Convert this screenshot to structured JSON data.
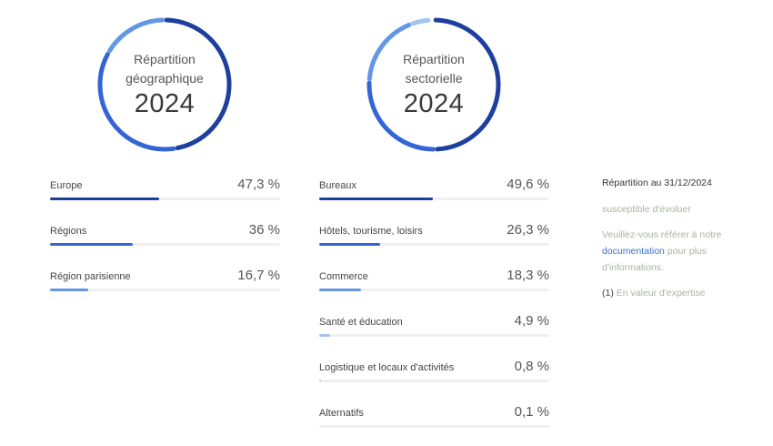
{
  "geo": {
    "title": "Répartition géographique",
    "year": "2024",
    "items": [
      {
        "label": "Europe",
        "value": "47,3 %",
        "pct": 47.3,
        "color": "#1d3f9e"
      },
      {
        "label": "Régions",
        "value": "36 %",
        "pct": 36,
        "color": "#3465d6"
      },
      {
        "label": "Région parisienne",
        "value": "16,7 %",
        "pct": 16.7,
        "color": "#6397e6"
      }
    ]
  },
  "sector": {
    "title": "Répartition sectorielle",
    "year": "2024",
    "items": [
      {
        "label": "Bureaux",
        "value": "49,6 %",
        "pct": 49.6,
        "color": "#1d3f9e"
      },
      {
        "label": "Hôtels, tourisme, loisirs",
        "value": "26,3 %",
        "pct": 26.3,
        "color": "#3465d6"
      },
      {
        "label": "Commerce",
        "value": "18,3 %",
        "pct": 18.3,
        "color": "#6397e6"
      },
      {
        "label": "Santé et éducation",
        "value": "4,9 %",
        "pct": 4.9,
        "color": "#a3c4f0"
      },
      {
        "label": "Logistique et locaux d'activités",
        "value": "0,8 %",
        "pct": 0.8,
        "color": "#c6d6ee"
      },
      {
        "label": "Alternatifs",
        "value": "0,1 %",
        "pct": 0.1,
        "color": "#dde6f3"
      }
    ]
  },
  "info": {
    "title": "Répartition au 31/12/2024",
    "line1": "susceptible d'évoluer",
    "line2_pre": "Veuillez-vous référer à notre ",
    "link": "documentation",
    "line2_post": " pour plus d'informations.",
    "note_num": "(1)",
    "note_text": " En valeur d'expertise"
  },
  "chart_data": [
    {
      "type": "pie",
      "title": "Répartition géographique 2024",
      "categories": [
        "Europe",
        "Régions",
        "Région parisienne"
      ],
      "values": [
        47.3,
        36,
        16.7
      ],
      "unit": "%"
    },
    {
      "type": "pie",
      "title": "Répartition sectorielle 2024",
      "categories": [
        "Bureaux",
        "Hôtels, tourisme, loisirs",
        "Commerce",
        "Santé et éducation",
        "Logistique et locaux d'activités",
        "Alternatifs"
      ],
      "values": [
        49.6,
        26.3,
        18.3,
        4.9,
        0.8,
        0.1
      ],
      "unit": "%"
    }
  ]
}
